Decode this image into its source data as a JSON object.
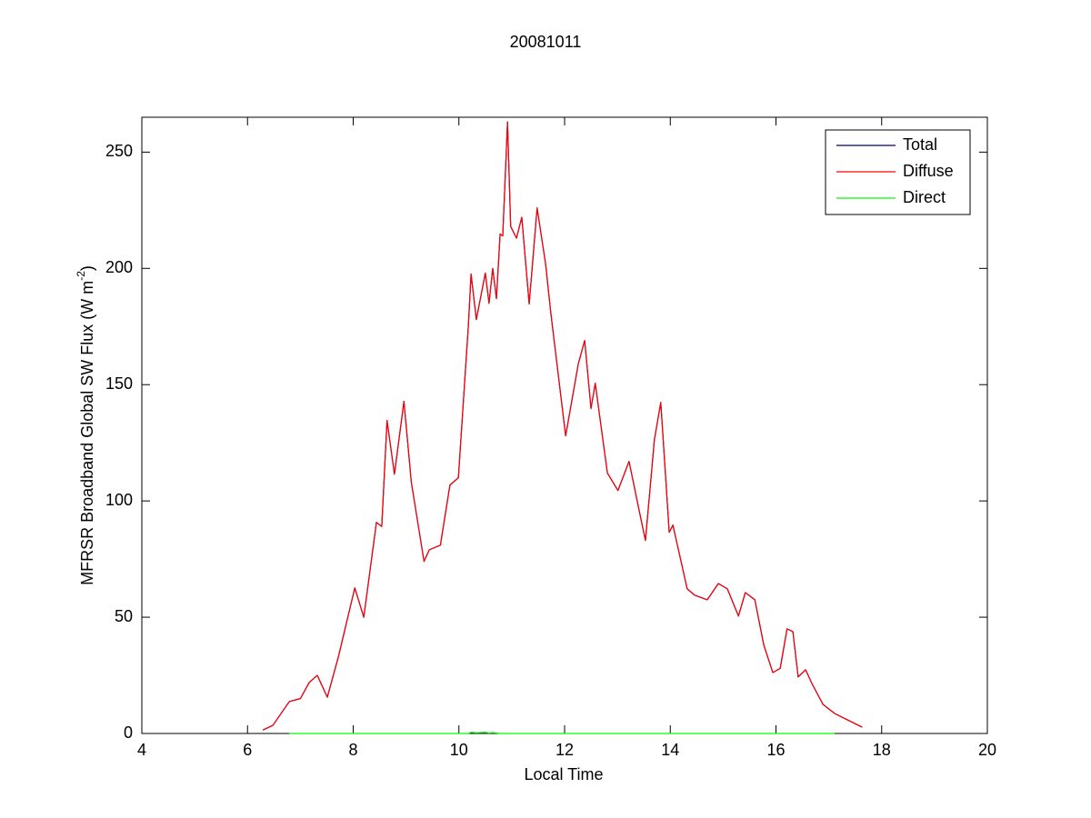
{
  "chart_data": {
    "type": "line",
    "title": "20081011",
    "xlabel": "Local Time",
    "ylabel_parts": [
      "MFRSR Broadband Global SW Flux (W m",
      "-2",
      ")"
    ],
    "x": [
      6.29,
      6.48,
      6.79,
      7.0,
      7.17,
      7.32,
      7.51,
      7.72,
      8.03,
      8.2,
      8.44,
      8.54,
      8.64,
      8.78,
      8.96,
      9.1,
      9.34,
      9.44,
      9.65,
      9.83,
      9.99,
      10.18,
      10.23,
      10.33,
      10.5,
      10.57,
      10.64,
      10.71,
      10.78,
      10.83,
      10.92,
      10.98,
      11.09,
      11.19,
      11.33,
      11.48,
      11.64,
      11.74,
      12.02,
      12.26,
      12.38,
      12.5,
      12.58,
      12.81,
      13.01,
      13.22,
      13.41,
      13.53,
      13.7,
      13.82,
      13.98,
      14.05,
      14.32,
      14.46,
      14.7,
      14.91,
      15.08,
      15.29,
      15.42,
      15.6,
      15.77,
      15.94,
      16.08,
      16.21,
      16.32,
      16.42,
      16.56,
      16.68,
      16.89,
      17.11,
      17.35,
      17.63
    ],
    "series": [
      {
        "name": "Total",
        "color": "#000080",
        "values": [
          1.5,
          3.5,
          13.7,
          15,
          22,
          25,
          15.6,
          33,
          62.6,
          50,
          90.8,
          89,
          134.6,
          111.5,
          142.8,
          108,
          74,
          79,
          81,
          106.8,
          110,
          175.7,
          197.6,
          178,
          198,
          185,
          200,
          187,
          214.8,
          214,
          263,
          218,
          213,
          222,
          184.7,
          226,
          202,
          180.7,
          128,
          159,
          169,
          139.7,
          150.6,
          112,
          104.5,
          117,
          96,
          83,
          126.4,
          142.4,
          86.5,
          89.6,
          62.2,
          59.5,
          57.5,
          64.5,
          62.2,
          50.5,
          60.6,
          57.5,
          38,
          26.2,
          28,
          45,
          43.8,
          24.3,
          27.4,
          21.5,
          12.5,
          8.6,
          5.9,
          2.7
        ]
      },
      {
        "name": "Diffuse",
        "color": "#ff0000",
        "values": [
          1.5,
          3.5,
          13.7,
          15,
          22,
          25,
          15.6,
          33,
          62.6,
          50,
          90.8,
          89,
          134.6,
          111.5,
          142.8,
          108,
          74,
          79,
          81,
          106.8,
          110,
          175.7,
          197.6,
          178,
          198,
          185,
          200,
          187,
          214.8,
          214,
          263,
          218,
          213,
          222,
          184.7,
          226,
          202,
          180.7,
          128,
          159,
          169,
          139.7,
          150.6,
          112,
          104.5,
          117,
          96,
          83,
          126.4,
          142.4,
          86.5,
          89.6,
          62.2,
          59.5,
          57.5,
          64.5,
          62.2,
          50.5,
          60.6,
          57.5,
          38,
          26.2,
          28,
          45,
          43.8,
          24.3,
          27.4,
          21.5,
          12.5,
          8.6,
          5.9,
          2.7
        ]
      },
      {
        "name": "Direct",
        "color": "#00ff00",
        "values": [
          null,
          null,
          0,
          0,
          0,
          0,
          0,
          0,
          0,
          0,
          0,
          0,
          0,
          0,
          0,
          0,
          0,
          0,
          0,
          0,
          0,
          0,
          0.5,
          0.3,
          0.5,
          0.2,
          0.4,
          0.2,
          0,
          0,
          0,
          0,
          0,
          0,
          0,
          0,
          0,
          0,
          0,
          0,
          0,
          0,
          0,
          0,
          0,
          0,
          0,
          0,
          0,
          0,
          0,
          0,
          0,
          0,
          0,
          0,
          0,
          0,
          0,
          0,
          0,
          0,
          0,
          0,
          0,
          0,
          0,
          0,
          0,
          0,
          null,
          null
        ]
      }
    ],
    "xlim": [
      4,
      20
    ],
    "xticks": [
      4,
      6,
      8,
      10,
      12,
      14,
      16,
      18,
      20
    ],
    "ylim": [
      0,
      265
    ],
    "yticks": [
      0,
      50,
      100,
      150,
      200,
      250
    ],
    "legend": "upper right"
  }
}
